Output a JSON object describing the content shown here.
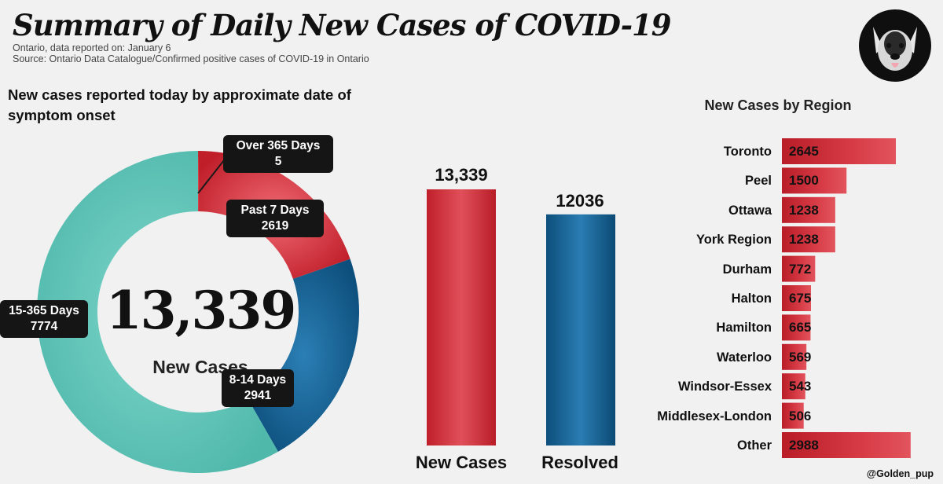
{
  "header": {
    "title": "Summary of Daily New Cases of COVID-19",
    "subtitle_1": "Ontario, data reported on: January 6",
    "subtitle_2": "Source: Ontario Data Catalogue/Confirmed positive cases of COVID-19 in Ontario",
    "logo_icon": "dog-avatar-icon"
  },
  "colors": {
    "red": "#c8252f",
    "blue": "#135d8d",
    "teal": "#5cc3b7",
    "callout_bg": "#151515",
    "background": "#f1f1f1"
  },
  "chart_data": [
    {
      "type": "pie",
      "title": "New cases reported today by approximate date of symptom onset",
      "style": "donut",
      "center_value": "13,339",
      "center_label": "New Cases",
      "slices": [
        {
          "name": "Over 365 Days",
          "value": 5,
          "label_value": "5",
          "color": "#c8252f"
        },
        {
          "name": "Past 7 Days",
          "value": 2619,
          "label_value": "2619",
          "color": "#c8252f"
        },
        {
          "name": "8-14 Days",
          "value": 2941,
          "label_value": "2941",
          "color": "#135d8d"
        },
        {
          "name": "15-365 Days",
          "value": 7774,
          "label_value": "7774",
          "color": "#5cc3b7"
        }
      ]
    },
    {
      "type": "bar",
      "categories": [
        "New Cases",
        "Resolved"
      ],
      "values": [
        13339,
        12036
      ],
      "value_labels": [
        "13,339",
        "12036"
      ],
      "colors": [
        "#c8252f",
        "#135d8d"
      ],
      "ylim": [
        0,
        15000
      ]
    },
    {
      "type": "bar",
      "orientation": "horizontal",
      "title": "New Cases by Region",
      "categories": [
        "Toronto",
        "Peel",
        "Ottawa",
        "York Region",
        "Durham",
        "Halton",
        "Hamilton",
        "Waterloo",
        "Windsor-Essex",
        "Middlesex-London",
        "Other"
      ],
      "values": [
        2645,
        1500,
        1238,
        1238,
        772,
        675,
        665,
        569,
        543,
        506,
        2988
      ],
      "color": "#c8252f",
      "xlim": [
        0,
        3000
      ]
    }
  ],
  "footer": {
    "handle": "@Golden_pup"
  }
}
